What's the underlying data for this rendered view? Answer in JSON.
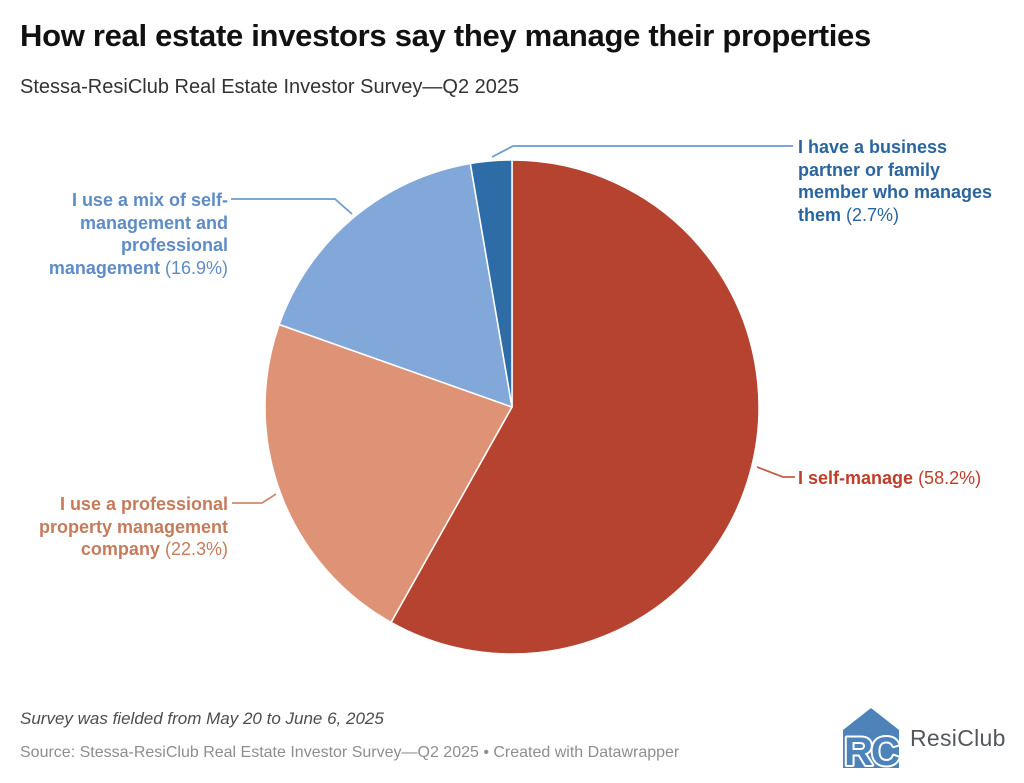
{
  "header": {
    "title": "How real estate investors say they manage their properties",
    "subtitle": "Stessa-ResiClub Real Estate Investor Survey—Q2 2025"
  },
  "chart_data": {
    "type": "pie",
    "title": "How real estate investors say they manage their properties",
    "subtitle": "Stessa-ResiClub Real Estate Investor Survey—Q2 2025",
    "unit": "%",
    "start_angle_deg": 0,
    "direction": "clockwise",
    "legend": "none (outside labels with leader lines)",
    "slices": [
      {
        "id": "self-manage",
        "label": "I self-manage",
        "pct_text": "(58.2%)",
        "value": 58.2,
        "color": "#b5432f",
        "label_color": "#bf3e2b",
        "line_color": "#c2604d"
      },
      {
        "id": "professional",
        "label": "I use a professional property management company",
        "pct_text": "(22.3%)",
        "value": 22.3,
        "color": "#de9377",
        "label_color": "#c47c5c",
        "line_color": "#cd8a6d"
      },
      {
        "id": "mix",
        "label": "I use a mix of self-management and professional management",
        "pct_text": "(16.9%)",
        "value": 16.9,
        "color": "#82a8d9",
        "label_color": "#5f8cc6",
        "line_color": "#6f9bcd"
      },
      {
        "id": "partner",
        "label": "I have a business partner or family member who manages them",
        "pct_text": "(2.7%)",
        "value": 2.7,
        "color": "#2e6ca8",
        "label_color": "#2b659e",
        "line_color": "#6f9bcd"
      }
    ]
  },
  "footer": {
    "note": "Survey was fielded from May 20 to June 6, 2025",
    "source": "Source: Stessa-ResiClub Real Estate Investor Survey—Q2 2025 • Created with Datawrapper"
  },
  "logo": {
    "monogram": "RC",
    "text": "ResiClub",
    "icon_color": "#4d83b9",
    "text_color": "#54585c"
  }
}
